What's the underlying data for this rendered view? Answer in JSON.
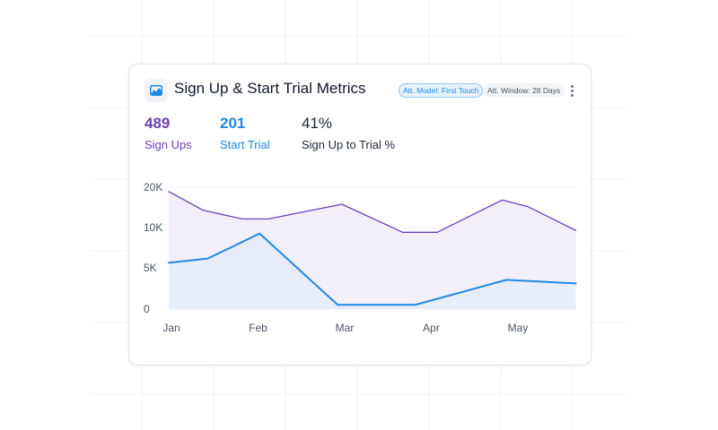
{
  "card": {
    "title": "Sign Up & Start Trial Metrics",
    "icon": "area-chart-icon",
    "badges": {
      "model": "Att. Model: First Touch",
      "window": "Att. Window: 28 Days"
    },
    "menu_icon": "more-vertical-icon"
  },
  "metrics": [
    {
      "value": "489",
      "label": "Sign Ups",
      "color": "#6b3fb8"
    },
    {
      "value": "201",
      "label": "Start Trial",
      "color": "#1e88e5"
    },
    {
      "value": "41%",
      "label": "Sign Up to Trial %",
      "color": "#1f2937"
    }
  ],
  "chart_data": {
    "type": "area",
    "x_ticks": [
      "Jan",
      "Feb",
      "Mar",
      "Apr",
      "May"
    ],
    "y_ticks": [
      "0",
      "5K",
      "10K",
      "20K"
    ],
    "ylim": [
      0,
      20000
    ],
    "grid": true,
    "series": [
      {
        "name": "Sign Ups",
        "color": "#6b3fb8",
        "fill": "#f3effa",
        "x": [
          0,
          0.4,
          0.85,
          1.15,
          2.0,
          2.7,
          3.1,
          3.85,
          4.15,
          4.7
        ],
        "y": [
          19300,
          16200,
          14800,
          14800,
          17200,
          12600,
          12600,
          17900,
          16800,
          12900
        ]
      },
      {
        "name": "Start Trial",
        "color": "#1e88e5",
        "fill": "#e6ecfa",
        "x": [
          0,
          0.45,
          1.05,
          1.95,
          2.85,
          3.9,
          4.7
        ],
        "y": [
          7600,
          8300,
          12400,
          700,
          700,
          4800,
          4200
        ]
      }
    ]
  }
}
